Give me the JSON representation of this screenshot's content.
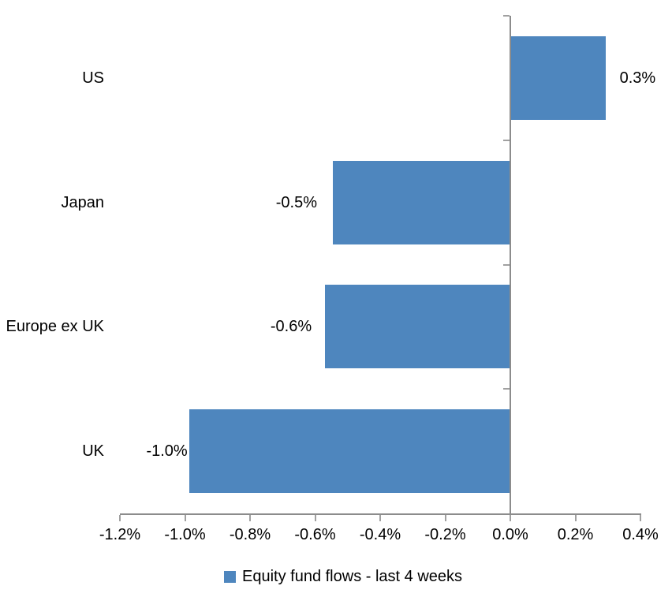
{
  "chart_data": {
    "type": "bar",
    "orientation": "horizontal",
    "categories": [
      "US",
      "Japan",
      "Europe ex UK",
      "UK"
    ],
    "values": [
      0.3,
      -0.5,
      -0.6,
      -1.0
    ],
    "values_precise_pct": [
      0.29,
      -0.543,
      -0.567,
      -0.985
    ],
    "data_labels": [
      "0.3%",
      "-0.5%",
      "-0.6%",
      "-1.0%"
    ],
    "x_axis": {
      "min": -1.2,
      "max": 0.4,
      "tick_step": 0.2,
      "tick_labels": [
        "-1.2%",
        "-1.0%",
        "-0.8%",
        "-0.6%",
        "-0.4%",
        "-0.2%",
        "0.0%",
        "0.2%",
        "0.4%"
      ]
    },
    "legend": {
      "label": "Equity fund flows - last 4 weeks",
      "position": "bottom",
      "marker_color": "#4e86be"
    },
    "colors": {
      "bar": "#4e86be",
      "axis_line": "#8c8c8c",
      "axis_tick": "#a0a0a0",
      "text": "#000000",
      "background": "#ffffff"
    },
    "grid": false
  }
}
